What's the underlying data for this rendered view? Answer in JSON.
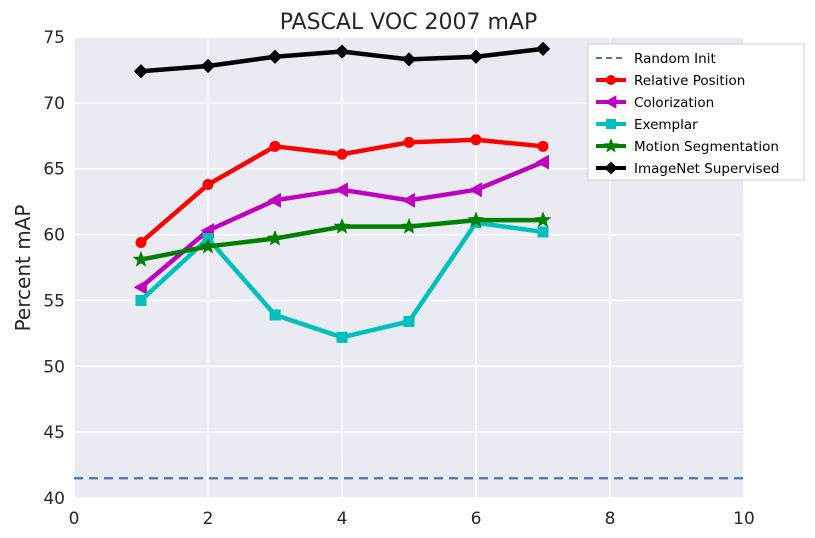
{
  "chart_data": {
    "type": "line",
    "title": "PASCAL VOC 2007 mAP",
    "xlabel": "",
    "ylabel": "Percent mAP",
    "xlim": [
      0,
      10
    ],
    "ylim": [
      40,
      75
    ],
    "xticks": [
      0,
      2,
      4,
      6,
      8,
      10
    ],
    "yticks": [
      40,
      45,
      50,
      55,
      60,
      65,
      70,
      75
    ],
    "grid": true,
    "legend_position": "top-right",
    "x": [
      1,
      2,
      3,
      4,
      5,
      6,
      7
    ],
    "series": [
      {
        "name": "Random Init",
        "style": "dashed",
        "marker": "none",
        "color": "#4c72b0",
        "x": [
          0,
          10
        ],
        "values": [
          41.5,
          41.5
        ]
      },
      {
        "name": "Relative Position",
        "style": "solid",
        "marker": "circle",
        "color": "#ff0000",
        "values": [
          59.4,
          63.8,
          66.7,
          66.1,
          67.0,
          67.2,
          66.7
        ]
      },
      {
        "name": "Colorization",
        "style": "solid",
        "marker": "triangle-left",
        "color": "#bf00bf",
        "values": [
          56.0,
          60.3,
          62.6,
          63.4,
          62.6,
          63.4,
          65.5
        ]
      },
      {
        "name": "Exemplar",
        "style": "solid",
        "marker": "square",
        "color": "#00bfbf",
        "values": [
          55.0,
          59.7,
          53.9,
          52.2,
          53.4,
          60.9,
          60.2
        ]
      },
      {
        "name": "Motion Segmentation",
        "style": "solid",
        "marker": "star",
        "color": "#008000",
        "values": [
          58.1,
          59.1,
          59.7,
          60.6,
          60.6,
          61.1,
          61.1
        ]
      },
      {
        "name": "ImageNet Supervised",
        "style": "solid",
        "marker": "diamond",
        "color": "#000000",
        "values": [
          72.4,
          72.8,
          73.5,
          73.9,
          73.3,
          73.5,
          74.1
        ]
      }
    ]
  },
  "colors": {
    "plot_background": "#eaeaf2",
    "grid": "#ffffff",
    "text": "#262626"
  }
}
